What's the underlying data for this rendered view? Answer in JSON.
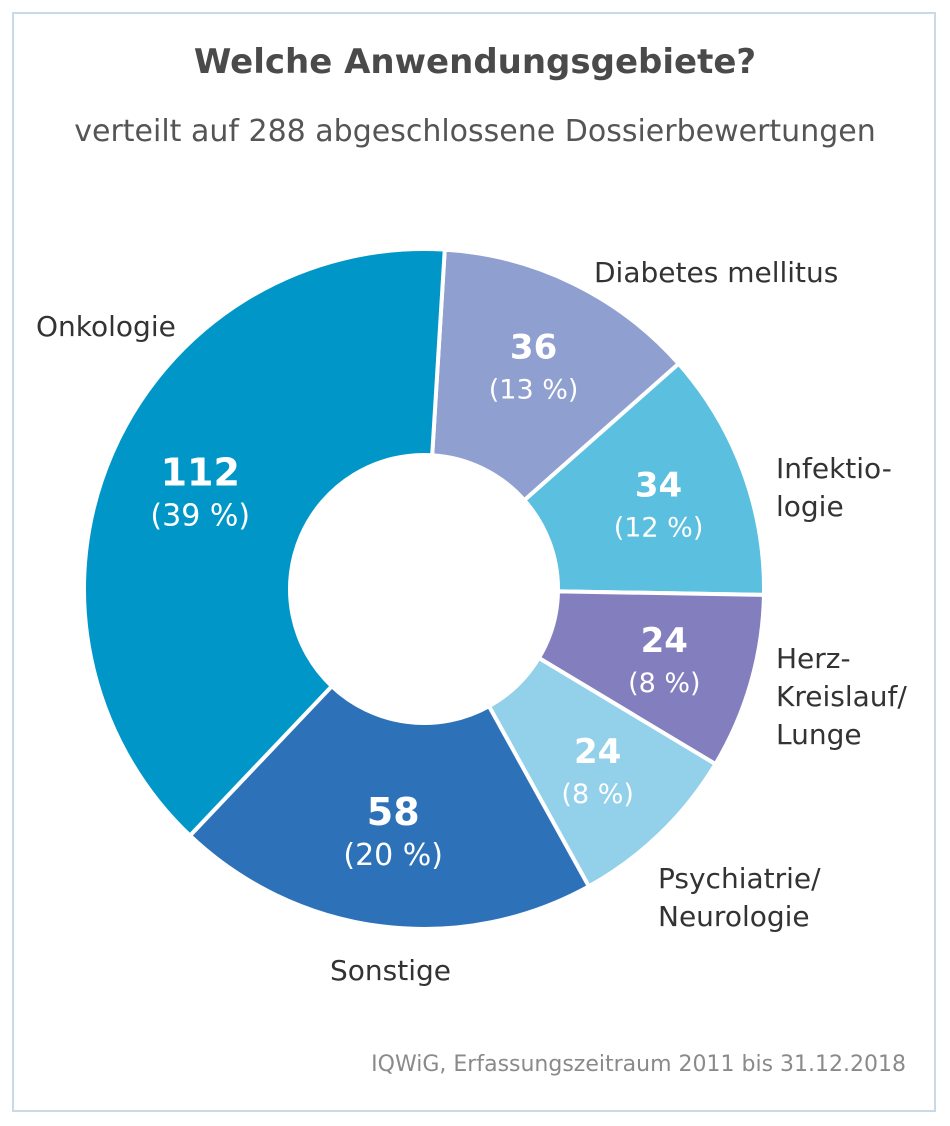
{
  "chart_data": {
    "type": "pie",
    "title": "Welche Anwendungsgebiete?",
    "subtitle": "verteilt auf 288 abgeschlossene Dossierbewertungen",
    "total": 288,
    "slices": [
      {
        "label": "Diabetes mellitus",
        "label_lines": [
          "Diabetes mellitus"
        ],
        "value": 36,
        "value_text": "36",
        "pct_text": "(13 %)",
        "color": "#8f9fd0"
      },
      {
        "label": "Infektiologie",
        "label_lines": [
          "Infektio-",
          "logie"
        ],
        "value": 34,
        "value_text": "34",
        "pct_text": "(12 %)",
        "color": "#5bbfe0"
      },
      {
        "label": "Herz-Kreislauf/Lunge",
        "label_lines": [
          "Herz-",
          "Kreislauf/",
          "Lunge"
        ],
        "value": 24,
        "value_text": "24",
        "pct_text": "(8 %)",
        "color": "#837fbf"
      },
      {
        "label": "Psychiatrie/Neurologie",
        "label_lines": [
          "Psychiatrie/",
          "Neurologie"
        ],
        "value": 24,
        "value_text": "24",
        "pct_text": "(8 %)",
        "color": "#93d0ea"
      },
      {
        "label": "Sonstige",
        "label_lines": [
          "Sonstige"
        ],
        "value": 58,
        "value_text": "58",
        "pct_text": "(20 %)",
        "color": "#2d72b8"
      },
      {
        "label": "Onkologie",
        "label_lines": [
          "Onkologie"
        ],
        "value": 112,
        "value_text": "112",
        "pct_text": "(39 %)",
        "color": "#0097c8"
      }
    ],
    "legend": "none"
  },
  "source": "IQWiG, Erfassungszeitraum 2011 bis 31.12.2018"
}
